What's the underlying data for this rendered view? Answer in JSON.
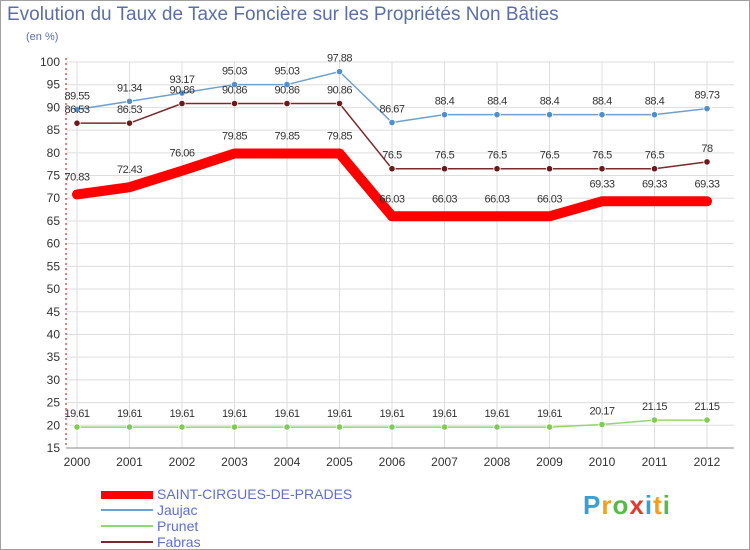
{
  "title": "Evolution du Taux de Taxe Foncière sur les Propriétés Non Bâties",
  "unit_label": "(en %)",
  "logo_text": "Proxiti",
  "chart_data": {
    "type": "line",
    "title": "Evolution du Taux de Taxe Foncière sur les Propriétés Non Bâties",
    "ylabel": "(en %)",
    "xlabel": "",
    "categories": [
      "2000",
      "2001",
      "2002",
      "2003",
      "2004",
      "2005",
      "2006",
      "2007",
      "2008",
      "2009",
      "2010",
      "2011",
      "2012"
    ],
    "ylim": [
      15,
      100
    ],
    "yticks": [
      15,
      20,
      25,
      30,
      35,
      40,
      45,
      50,
      55,
      60,
      65,
      70,
      75,
      80,
      85,
      90,
      95,
      100
    ],
    "legend_position": "bottom-left",
    "series": [
      {
        "name": "SAINT-CIRGUES-DE-PRADES",
        "color": "#ff0000",
        "values": [
          70.83,
          72.43,
          76.06,
          79.85,
          79.85,
          79.85,
          66.03,
          66.03,
          66.03,
          66.03,
          69.33,
          69.33,
          69.33
        ],
        "labels": [
          "70.83",
          "72.43",
          "76.06",
          "79.85",
          "79.85",
          "79.85",
          "66.03",
          "66.03",
          "66.03",
          "66.03",
          "69.33",
          "69.33",
          "69.33"
        ]
      },
      {
        "name": "Jaujac",
        "color": "#6fa0d0",
        "values": [
          89.55,
          91.34,
          93.17,
          95.03,
          95.03,
          97.88,
          86.67,
          88.4,
          88.4,
          88.4,
          88.4,
          88.4,
          89.73
        ],
        "labels": [
          "89.55",
          "91.34",
          "93.17",
          "95.03",
          "95.03",
          "97.88",
          "86.67",
          "88.4",
          "88.4",
          "88.4",
          "88.4",
          "88.4",
          "89.73"
        ]
      },
      {
        "name": "Prunet",
        "color": "#90d870",
        "values": [
          19.61,
          19.61,
          19.61,
          19.61,
          19.61,
          19.61,
          19.61,
          19.61,
          19.61,
          19.61,
          20.17,
          21.15,
          21.15
        ],
        "labels": [
          "19.61",
          "19.61",
          "19.61",
          "19.61",
          "19.61",
          "19.61",
          "19.61",
          "19.61",
          "19.61",
          "19.61",
          "20.17",
          "21.15",
          "21.15"
        ]
      },
      {
        "name": "Fabras",
        "color": "#7a2a2a",
        "values": [
          86.53,
          86.53,
          90.86,
          90.86,
          90.86,
          90.86,
          76.5,
          76.5,
          76.5,
          76.5,
          76.5,
          76.5,
          78
        ],
        "labels": [
          "86.53",
          "86.53",
          "90.86",
          "90.86",
          "90.86",
          "90.86",
          "76.5",
          "76.5",
          "76.5",
          "76.5",
          "76.5",
          "76.5",
          "78"
        ]
      }
    ]
  }
}
